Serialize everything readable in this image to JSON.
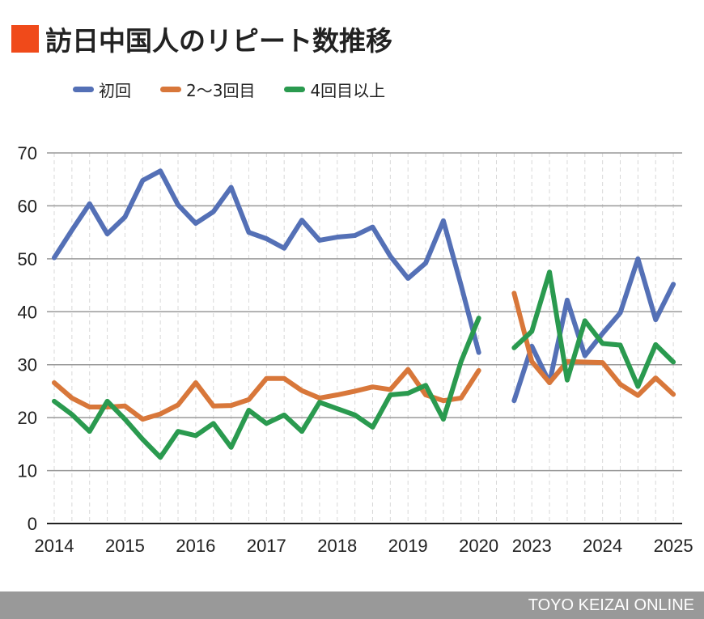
{
  "chart_data": {
    "type": "line",
    "title": "訪日中国人のリピート数推移",
    "ylim": [
      0,
      70
    ],
    "yticks": [
      0,
      10,
      20,
      30,
      40,
      50,
      60,
      70
    ],
    "grid": true,
    "legend_placement": "top",
    "x_ticks": [
      {
        "index": 0,
        "label": "2014"
      },
      {
        "index": 4,
        "label": "2015"
      },
      {
        "index": 8,
        "label": "2016"
      },
      {
        "index": 12,
        "label": "2017"
      },
      {
        "index": 16,
        "label": "2018"
      },
      {
        "index": 20,
        "label": "2019"
      },
      {
        "index": 24,
        "label": "2020"
      },
      {
        "index": 27,
        "label": "2023"
      },
      {
        "index": 31,
        "label": "2024"
      },
      {
        "index": 35,
        "label": "2025"
      }
    ],
    "series": [
      {
        "name": "初回",
        "color": "#5470b6",
        "values": [
          50.2,
          55.4,
          60.4,
          54.7,
          57.9,
          64.8,
          66.6,
          60.2,
          56.7,
          58.9,
          63.5,
          55.0,
          53.8,
          52.0,
          57.3,
          53.5,
          54.1,
          54.4,
          56.0,
          50.5,
          46.3,
          49.2,
          57.2,
          45.0,
          32.3,
          null,
          23.2,
          33.5,
          26.6,
          42.2,
          31.7,
          35.9,
          39.8,
          50.0,
          38.5,
          45.2
        ]
      },
      {
        "name": "2〜3回目",
        "color": "#d8773a",
        "values": [
          26.6,
          23.7,
          22.0,
          22.0,
          22.2,
          19.7,
          20.7,
          22.4,
          26.6,
          22.2,
          22.3,
          23.4,
          27.4,
          27.4,
          25.1,
          23.7,
          24.3,
          25.0,
          25.8,
          25.3,
          29.1,
          24.3,
          23.2,
          23.7,
          28.9,
          null,
          43.5,
          30.6,
          26.6,
          30.6,
          30.5,
          30.4,
          26.3,
          24.2,
          27.5,
          24.4
        ]
      },
      {
        "name": "4回目以上",
        "color": "#2a9a4f",
        "values": [
          23.1,
          20.6,
          17.4,
          23.1,
          19.7,
          15.9,
          12.5,
          17.4,
          16.6,
          18.9,
          14.4,
          21.4,
          18.9,
          20.5,
          17.4,
          22.9,
          21.7,
          20.5,
          18.2,
          24.3,
          24.6,
          26.1,
          19.7,
          30.6,
          38.8,
          null,
          33.2,
          36.3,
          47.5,
          27.1,
          38.3,
          34.0,
          33.7,
          25.9,
          33.8,
          30.5
        ]
      }
    ]
  },
  "title_accent_color": "#f04a1a",
  "footer": "TOYO KEIZAI ONLINE"
}
